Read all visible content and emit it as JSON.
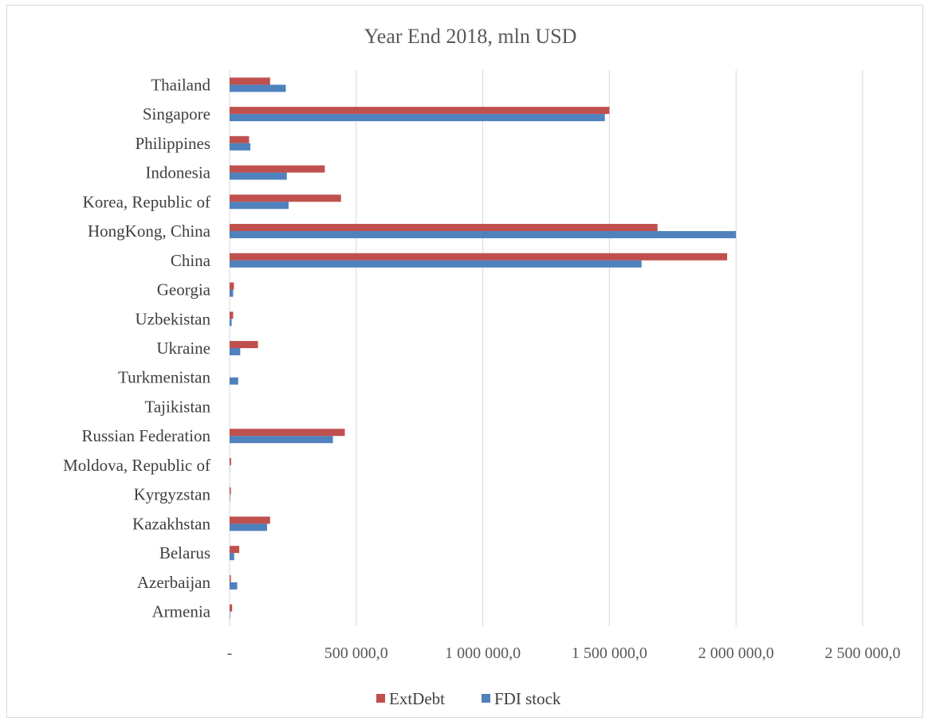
{
  "chart_data": {
    "type": "bar",
    "orientation": "horizontal",
    "title": "Year End 2018, mln USD",
    "categories": [
      "Armenia",
      "Azerbaijan",
      "Belarus",
      "Kazakhstan",
      "Kyrgyzstan",
      "Moldova, Republic of",
      "Russian Federation",
      "Tajikistan",
      "Turkmenistan",
      "Ukraine",
      "Uzbekistan",
      "Georgia",
      "China",
      "HongKong, China",
      "Korea, Republic of",
      "Indonesia",
      "Philippines",
      "Singapore",
      "Thailand"
    ],
    "series": [
      {
        "name": "ExtDebt",
        "color": "#c0504d",
        "values": [
          10000,
          5000,
          38000,
          160000,
          5000,
          6000,
          455000,
          0,
          0,
          112000,
          14000,
          17000,
          1965000,
          1690000,
          440000,
          376000,
          77000,
          1500000,
          160000
        ]
      },
      {
        "name": "FDI stock",
        "color": "#4f81bd",
        "values": [
          2000,
          30000,
          18000,
          148000,
          2000,
          1000,
          408000,
          0,
          34000,
          42000,
          8000,
          14000,
          1627000,
          2000000,
          233000,
          226000,
          82000,
          1482000,
          222000
        ]
      }
    ],
    "x_ticks": [
      "-",
      "500 000,0",
      "1 000 000,0",
      "1 500 000,0",
      "2 000 000,0",
      "2 500 000,0"
    ],
    "xlim": [
      0,
      2500000
    ],
    "grid": "vertical",
    "legend_position": "bottom"
  }
}
